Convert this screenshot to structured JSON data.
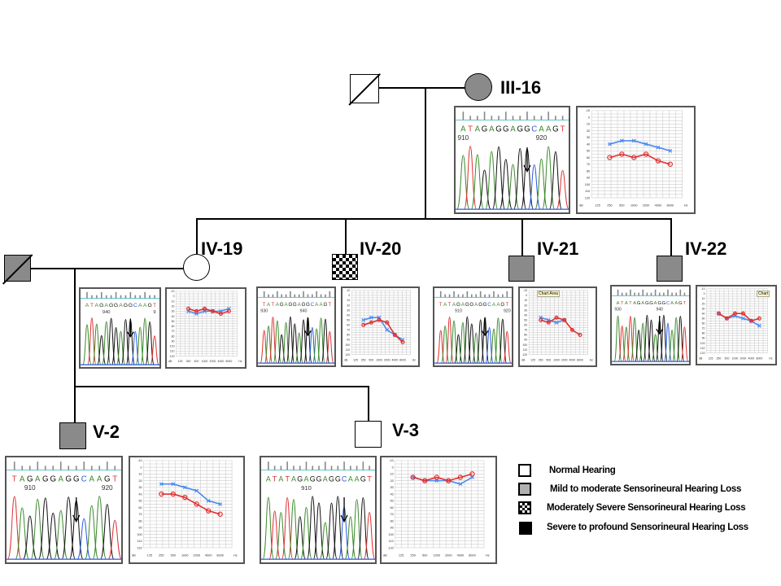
{
  "colors": {
    "A": "#3a8a2a",
    "T": "#e03030",
    "G": "#111111",
    "C": "#2a5ae0",
    "right_ear": "#e03030",
    "left_ear": "#4a8af0",
    "affected_fill": "#8a8a8a"
  },
  "audiogram_axes": {
    "y_ticks": [
      "-10",
      "0",
      "10",
      "20",
      "30",
      "40",
      "50",
      "60",
      "70",
      "80",
      "90",
      "100",
      "110",
      "120"
    ],
    "y_min": -10,
    "y_max": 120,
    "x_ticks": [
      "125",
      "250",
      "500",
      "1000",
      "2000",
      "4000",
      "8000"
    ],
    "y_unit": "dB",
    "x_unit": "Hz"
  },
  "individuals": {
    "III16": {
      "label": "III-16",
      "phenotype": "mild",
      "chromatogram": {
        "sequence": "ATAGAGGAGGCAAGT",
        "positions": [
          {
            "text": "910",
            "index": 0
          },
          {
            "text": "920",
            "index": 11
          }
        ],
        "arrow_index": 9
      },
      "audiogram": {
        "left": [
          40,
          35,
          35,
          40,
          45,
          50
        ],
        "right": [
          60,
          55,
          60,
          55,
          65,
          70
        ]
      }
    },
    "IV19": {
      "label": "IV-19",
      "phenotype": "normal",
      "chromatogram": {
        "sequence": "ATAGAGGAGGCAAGT",
        "positions": [
          {
            "text": "940",
            "index": 4
          },
          {
            "text": "9",
            "index": 14
          }
        ],
        "arrow_index": 9
      },
      "audiogram": {
        "left": [
          30,
          35,
          30,
          30,
          30,
          25
        ],
        "right": [
          25,
          30,
          25,
          30,
          35,
          30
        ]
      }
    },
    "IV20": {
      "label": "IV-20",
      "phenotype": "moderately-severe",
      "chromatogram": {
        "sequence": "TATAGAGGAGGCAAGT",
        "positions": [
          {
            "text": "930",
            "index": 0
          },
          {
            "text": "940",
            "index": 9
          }
        ],
        "arrow_index": 10
      },
      "audiogram": {
        "left": [
          50,
          45,
          45,
          70,
          80,
          90
        ],
        "right": [
          60,
          55,
          50,
          55,
          80,
          95
        ]
      }
    },
    "IV21": {
      "label": "IV-21",
      "phenotype": "mild",
      "chromatogram": {
        "sequence": "TATAGAGGAGGCAAGT",
        "positions": [
          {
            "text": "910",
            "index": 4
          },
          {
            "text": "920",
            "index": 15
          }
        ],
        "arrow_index": 10
      },
      "audiogram": {
        "left": [
          45,
          50,
          55,
          50,
          null,
          null
        ],
        "right": [
          50,
          55,
          45,
          50,
          70,
          80
        ]
      },
      "tooltip": "Chart Area"
    },
    "IV22": {
      "label": "IV-22",
      "phenotype": "mild",
      "chromatogram": {
        "sequence": "ATATAGAGGAGGCAAGT",
        "positions": [
          {
            "text": "930",
            "index": 0
          },
          {
            "text": "940",
            "index": 10
          }
        ],
        "arrow_index": 10
      },
      "audiogram": {
        "left": [
          40,
          50,
          45,
          50,
          55,
          65
        ],
        "right": [
          40,
          50,
          40,
          40,
          55,
          50
        ]
      },
      "tooltip": "Chart"
    },
    "V2": {
      "label": "V-2",
      "phenotype": "mild",
      "chromatogram": {
        "sequence": "TAGAGGAGGCAAGT",
        "positions": [
          {
            "text": "910",
            "index": 2
          },
          {
            "text": "920",
            "index": 12
          }
        ],
        "arrow_index": 8
      },
      "audiogram": {
        "left": [
          25,
          25,
          30,
          35,
          50,
          55
        ],
        "right": [
          40,
          40,
          45,
          55,
          65,
          70
        ]
      }
    },
    "V3": {
      "label": "V-3",
      "phenotype": "normal",
      "chromatogram": {
        "sequence": "ATATAGAGGAGGCAAGT",
        "positions": [
          {
            "text": "910",
            "index": 6
          }
        ],
        "arrow_index": 12
      },
      "audiogram": {
        "left": [
          15,
          20,
          20,
          20,
          25,
          15
        ],
        "right": [
          15,
          20,
          15,
          20,
          15,
          10
        ]
      }
    }
  },
  "legend": [
    {
      "phenotype": "normal",
      "label": "Normal Hearing"
    },
    {
      "phenotype": "mild",
      "label": "Mild to moderate  Sensorineural  Hearing  Loss"
    },
    {
      "phenotype": "moderately-severe",
      "label": "Moderately Severe  Sensorineural  Hearing  Loss"
    },
    {
      "phenotype": "severe",
      "label": "Severe to profound  Sensorineural  Hearing  Loss"
    }
  ]
}
